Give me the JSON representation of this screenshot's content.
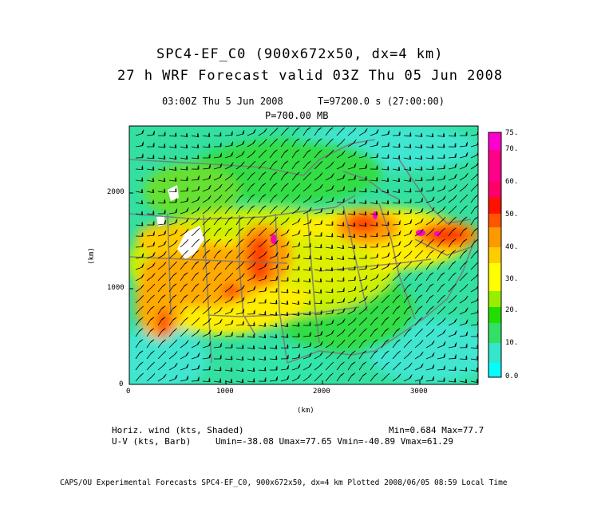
{
  "header": {
    "title_line1": "SPC4-EF_C0 (900x672x50, dx=4 km)",
    "title_line2": "27 h WRF Forecast valid 03Z Thu 05 Jun 2008",
    "subtitle_time": "03:00Z Thu  5 Jun 2008",
    "subtitle_t": "T=97200.0 s (27:00:00)",
    "subtitle_level": "P=700.00 MB"
  },
  "axes": {
    "x_ticks": [
      "0",
      "1000",
      "2000",
      "3000"
    ],
    "y_ticks": [
      "0",
      "1000",
      "2000"
    ],
    "x_unit": "(km)",
    "y_unit": "(km)"
  },
  "colorbar": {
    "labels": [
      "0.0",
      "10.",
      "20.",
      "30.",
      "40.",
      "50.",
      "60.",
      "70.",
      "75."
    ],
    "colors": [
      "#00ffff",
      "#33e6cc",
      "#33e066",
      "#22dd00",
      "#99ee00",
      "#ffff00",
      "#ffcc00",
      "#ff9900",
      "#ff5500",
      "#ff1100",
      "#ff0066",
      "#ff00cc"
    ]
  },
  "footer": {
    "shaded_label": "Horiz. wind (kts, Shaded)",
    "minmax": "Min=0.684 Max=77.7",
    "barb_label": "U-V (kts, Barb)",
    "uv_stats": "Umin=-38.08 Umax=77.65 Vmin=-40.89 Vmax=61.29",
    "credit": "CAPS/OU Experimental Forecasts  SPC4-EF_C0, 900x672x50, dx=4 km  Plotted 2008/06/05 08:59 Local Time"
  }
}
